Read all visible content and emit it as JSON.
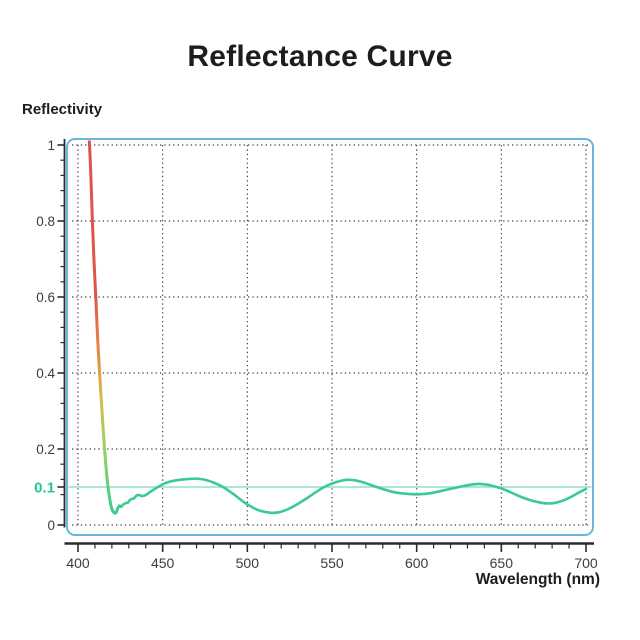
{
  "title": "Reflectance Curve",
  "y_axis_label": "Reflectivity",
  "x_axis_label": "Wavelength (nm)",
  "colors": {
    "title_text": "#1d1d1d",
    "frame_border": "#68b6db",
    "grid_dots": "#3e3e3e",
    "axis_line": "#2b2b2b",
    "tick_label": "#3d3d3d",
    "highlight_tick_label": "#26c78d",
    "reference_line": "#8fe2c8",
    "curve_green": "#3acb90",
    "curve_red": "#e2504e",
    "curve_orange": "#e5863f",
    "curve_yellow": "#cfc04c"
  },
  "chart_data": {
    "type": "line",
    "title": "Reflectance Curve",
    "xlabel": "Wavelength (nm)",
    "ylabel": "Reflectivity",
    "xlim": [
      400,
      700
    ],
    "ylim": [
      0,
      1
    ],
    "grid": true,
    "grid_style": "dotted",
    "x_ticks": [
      400,
      450,
      500,
      550,
      600,
      650,
      700
    ],
    "x_tick_labels": [
      "400",
      "450",
      "500",
      "550",
      "600",
      "650",
      "700"
    ],
    "x_minor_tick_step": 10,
    "y_ticks": [
      0,
      0.2,
      0.4,
      0.6,
      0.8,
      1
    ],
    "y_tick_labels": [
      "0",
      "0.2",
      "0.4",
      "0.6",
      "0.8",
      "1"
    ],
    "y_minor_tick_step": 0.04,
    "highlight_tick": {
      "value": 0.1,
      "label": "0.1"
    },
    "reference_line": {
      "y": 0.1
    },
    "descent_gradient": [
      [
        "0%",
        "#e2504e"
      ],
      [
        "42%",
        "#df5549"
      ],
      [
        "56%",
        "#e5863f"
      ],
      [
        "70%",
        "#cfc04c"
      ],
      [
        "84%",
        "#8ed463"
      ],
      [
        "100%",
        "#3acb90"
      ]
    ],
    "series": [
      {
        "name": "reflectance",
        "points": [
          [
            406.5,
            1.03
          ],
          [
            407.5,
            0.93
          ],
          [
            408.5,
            0.8
          ],
          [
            409.5,
            0.69
          ],
          [
            410.5,
            0.6
          ],
          [
            411.5,
            0.5
          ],
          [
            412.5,
            0.42
          ],
          [
            414,
            0.31
          ],
          [
            415.5,
            0.21
          ],
          [
            417,
            0.13
          ],
          [
            418.5,
            0.075
          ],
          [
            420,
            0.042
          ],
          [
            421.5,
            0.032
          ],
          [
            422.5,
            0.033
          ],
          [
            423.5,
            0.044
          ],
          [
            424.5,
            0.051
          ],
          [
            425.5,
            0.048
          ],
          [
            427,
            0.055
          ],
          [
            428.5,
            0.058
          ],
          [
            429.5,
            0.059
          ],
          [
            431,
            0.067
          ],
          [
            433,
            0.07
          ],
          [
            434.5,
            0.077
          ],
          [
            436,
            0.079
          ],
          [
            438,
            0.076
          ],
          [
            440,
            0.079
          ],
          [
            442,
            0.085
          ],
          [
            445,
            0.094
          ],
          [
            448,
            0.102
          ],
          [
            451,
            0.109
          ],
          [
            455,
            0.115
          ],
          [
            460,
            0.119
          ],
          [
            465,
            0.121
          ],
          [
            470,
            0.122
          ],
          [
            474,
            0.12
          ],
          [
            478,
            0.115
          ],
          [
            482,
            0.108
          ],
          [
            486,
            0.099
          ],
          [
            490,
            0.087
          ],
          [
            494,
            0.074
          ],
          [
            498,
            0.06
          ],
          [
            502,
            0.049
          ],
          [
            506,
            0.04
          ],
          [
            510,
            0.035
          ],
          [
            514,
            0.032
          ],
          [
            518,
            0.033
          ],
          [
            522,
            0.038
          ],
          [
            526,
            0.046
          ],
          [
            530,
            0.056
          ],
          [
            535,
            0.07
          ],
          [
            540,
            0.085
          ],
          [
            545,
            0.099
          ],
          [
            550,
            0.109
          ],
          [
            555,
            0.116
          ],
          [
            559,
            0.119
          ],
          [
            563,
            0.118
          ],
          [
            567,
            0.114
          ],
          [
            572,
            0.107
          ],
          [
            577,
            0.099
          ],
          [
            582,
            0.092
          ],
          [
            587,
            0.086
          ],
          [
            592,
            0.083
          ],
          [
            597,
            0.081
          ],
          [
            602,
            0.081
          ],
          [
            607,
            0.083
          ],
          [
            612,
            0.087
          ],
          [
            617,
            0.092
          ],
          [
            622,
            0.097
          ],
          [
            627,
            0.102
          ],
          [
            632,
            0.106
          ],
          [
            636,
            0.108
          ],
          [
            640,
            0.107
          ],
          [
            644,
            0.104
          ],
          [
            648,
            0.099
          ],
          [
            652,
            0.093
          ],
          [
            656,
            0.085
          ],
          [
            660,
            0.077
          ],
          [
            664,
            0.07
          ],
          [
            668,
            0.064
          ],
          [
            672,
            0.06
          ],
          [
            676,
            0.057
          ],
          [
            680,
            0.057
          ],
          [
            684,
            0.061
          ],
          [
            688,
            0.067
          ],
          [
            692,
            0.076
          ],
          [
            696,
            0.086
          ],
          [
            700,
            0.095
          ]
        ]
      }
    ]
  }
}
